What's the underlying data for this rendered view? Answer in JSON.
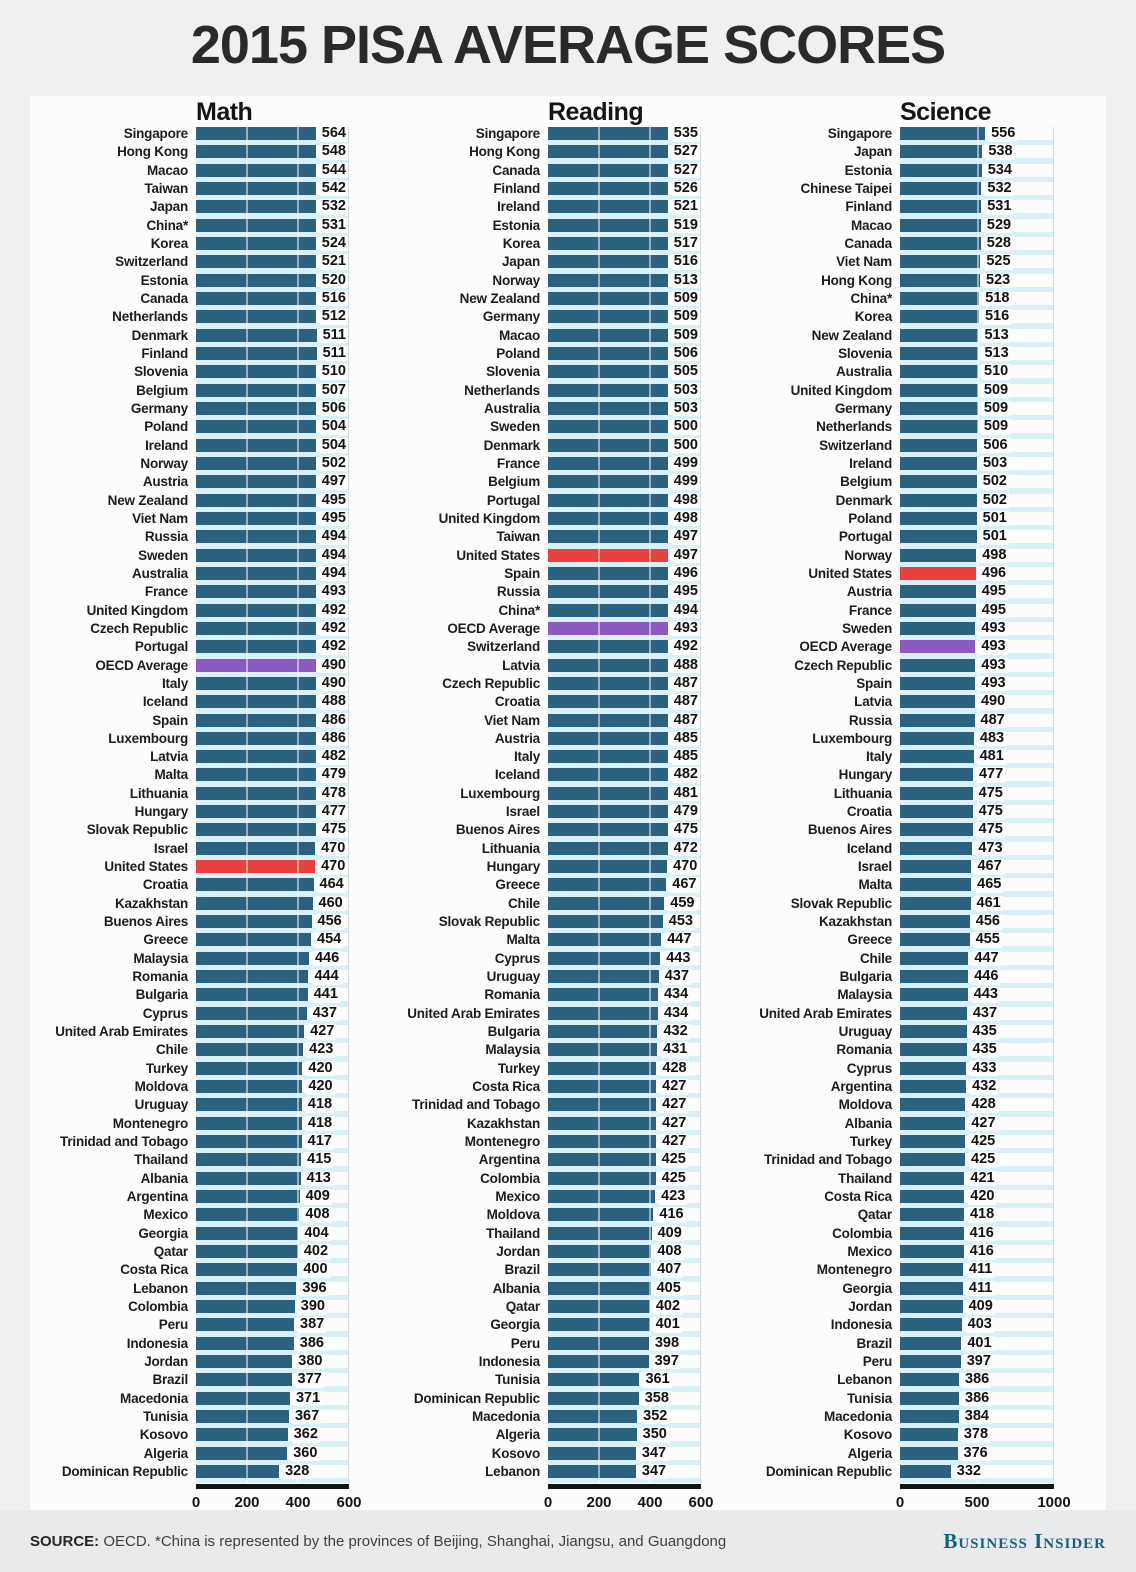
{
  "title": "2015 PISA AVERAGE SCORES",
  "footer": {
    "source_prefix": "SOURCE:",
    "source_text": " OECD. *China is represented by the provinces of Beijing, Shanghai, Jiangsu, and Guangdong",
    "brand": "Business Insider"
  },
  "colors": {
    "bar": "#2a627f",
    "highlight_us": "#e8413e",
    "highlight_oecd": "#8d5bbf",
    "stripe": "#d9f0f8",
    "axis": "#141414",
    "brand": "#15607f"
  },
  "chart_data": [
    {
      "type": "bar",
      "title": "Math",
      "xlabel": "",
      "ylabel": "",
      "xlim": [
        0,
        600
      ],
      "ticks": [
        0,
        200,
        400,
        600
      ],
      "grid": true,
      "highlight_red": "United States",
      "highlight_purple": "OECD Average",
      "rows": [
        [
          "Singapore",
          564
        ],
        [
          "Hong Kong",
          548
        ],
        [
          "Macao",
          544
        ],
        [
          "Taiwan",
          542
        ],
        [
          "Japan",
          532
        ],
        [
          "China*",
          531
        ],
        [
          "Korea",
          524
        ],
        [
          "Switzerland",
          521
        ],
        [
          "Estonia",
          520
        ],
        [
          "Canada",
          516
        ],
        [
          "Netherlands",
          512
        ],
        [
          "Denmark",
          511
        ],
        [
          "Finland",
          511
        ],
        [
          "Slovenia",
          510
        ],
        [
          "Belgium",
          507
        ],
        [
          "Germany",
          506
        ],
        [
          "Poland",
          504
        ],
        [
          "Ireland",
          504
        ],
        [
          "Norway",
          502
        ],
        [
          "Austria",
          497
        ],
        [
          "New Zealand",
          495
        ],
        [
          "Viet Nam",
          495
        ],
        [
          "Russia",
          494
        ],
        [
          "Sweden",
          494
        ],
        [
          "Australia",
          494
        ],
        [
          "France",
          493
        ],
        [
          "United Kingdom",
          492
        ],
        [
          "Czech Republic",
          492
        ],
        [
          "Portugal",
          492
        ],
        [
          "OECD Average",
          490
        ],
        [
          "Italy",
          490
        ],
        [
          "Iceland",
          488
        ],
        [
          "Spain",
          486
        ],
        [
          "Luxembourg",
          486
        ],
        [
          "Latvia",
          482
        ],
        [
          "Malta",
          479
        ],
        [
          "Lithuania",
          478
        ],
        [
          "Hungary",
          477
        ],
        [
          "Slovak Republic",
          475
        ],
        [
          "Israel",
          470
        ],
        [
          "United States",
          470
        ],
        [
          "Croatia",
          464
        ],
        [
          "Kazakhstan",
          460
        ],
        [
          "Buenos Aires",
          456
        ],
        [
          "Greece",
          454
        ],
        [
          "Malaysia",
          446
        ],
        [
          "Romania",
          444
        ],
        [
          "Bulgaria",
          441
        ],
        [
          "Cyprus",
          437
        ],
        [
          "United Arab Emirates",
          427
        ],
        [
          "Chile",
          423
        ],
        [
          "Turkey",
          420
        ],
        [
          "Moldova",
          420
        ],
        [
          "Uruguay",
          418
        ],
        [
          "Montenegro",
          418
        ],
        [
          "Trinidad and Tobago",
          417
        ],
        [
          "Thailand",
          415
        ],
        [
          "Albania",
          413
        ],
        [
          "Argentina",
          409
        ],
        [
          "Mexico",
          408
        ],
        [
          "Georgia",
          404
        ],
        [
          "Qatar",
          402
        ],
        [
          "Costa Rica",
          400
        ],
        [
          "Lebanon",
          396
        ],
        [
          "Colombia",
          390
        ],
        [
          "Peru",
          387
        ],
        [
          "Indonesia",
          386
        ],
        [
          "Jordan",
          380
        ],
        [
          "Brazil",
          377
        ],
        [
          "Macedonia",
          371
        ],
        [
          "Tunisia",
          367
        ],
        [
          "Kosovo",
          362
        ],
        [
          "Algeria",
          360
        ],
        [
          "Dominican Republic",
          328
        ]
      ]
    },
    {
      "type": "bar",
      "title": "Reading",
      "xlabel": "",
      "ylabel": "",
      "xlim": [
        0,
        600
      ],
      "ticks": [
        0,
        200,
        400,
        600
      ],
      "grid": true,
      "highlight_red": "United States",
      "highlight_purple": "OECD Average",
      "rows": [
        [
          "Singapore",
          535
        ],
        [
          "Hong Kong",
          527
        ],
        [
          "Canada",
          527
        ],
        [
          "Finland",
          526
        ],
        [
          "Ireland",
          521
        ],
        [
          "Estonia",
          519
        ],
        [
          "Korea",
          517
        ],
        [
          "Japan",
          516
        ],
        [
          "Norway",
          513
        ],
        [
          "New Zealand",
          509
        ],
        [
          "Germany",
          509
        ],
        [
          "Macao",
          509
        ],
        [
          "Poland",
          506
        ],
        [
          "Slovenia",
          505
        ],
        [
          "Netherlands",
          503
        ],
        [
          "Australia",
          503
        ],
        [
          "Sweden",
          500
        ],
        [
          "Denmark",
          500
        ],
        [
          "France",
          499
        ],
        [
          "Belgium",
          499
        ],
        [
          "Portugal",
          498
        ],
        [
          "United Kingdom",
          498
        ],
        [
          "Taiwan",
          497
        ],
        [
          "United States",
          497
        ],
        [
          "Spain",
          496
        ],
        [
          "Russia",
          495
        ],
        [
          "China*",
          494
        ],
        [
          "OECD Average",
          493
        ],
        [
          "Switzerland",
          492
        ],
        [
          "Latvia",
          488
        ],
        [
          "Czech Republic",
          487
        ],
        [
          "Croatia",
          487
        ],
        [
          "Viet Nam",
          487
        ],
        [
          "Austria",
          485
        ],
        [
          "Italy",
          485
        ],
        [
          "Iceland",
          482
        ],
        [
          "Luxembourg",
          481
        ],
        [
          "Israel",
          479
        ],
        [
          "Buenos Aires",
          475
        ],
        [
          "Lithuania",
          472
        ],
        [
          "Hungary",
          470
        ],
        [
          "Greece",
          467
        ],
        [
          "Chile",
          459
        ],
        [
          "Slovak Republic",
          453
        ],
        [
          "Malta",
          447
        ],
        [
          "Cyprus",
          443
        ],
        [
          "Uruguay",
          437
        ],
        [
          "Romania",
          434
        ],
        [
          "United Arab Emirates",
          434
        ],
        [
          "Bulgaria",
          432
        ],
        [
          "Malaysia",
          431
        ],
        [
          "Turkey",
          428
        ],
        [
          "Costa Rica",
          427
        ],
        [
          "Trinidad and Tobago",
          427
        ],
        [
          "Kazakhstan",
          427
        ],
        [
          "Montenegro",
          427
        ],
        [
          "Argentina",
          425
        ],
        [
          "Colombia",
          425
        ],
        [
          "Mexico",
          423
        ],
        [
          "Moldova",
          416
        ],
        [
          "Thailand",
          409
        ],
        [
          "Jordan",
          408
        ],
        [
          "Brazil",
          407
        ],
        [
          "Albania",
          405
        ],
        [
          "Qatar",
          402
        ],
        [
          "Georgia",
          401
        ],
        [
          "Peru",
          398
        ],
        [
          "Indonesia",
          397
        ],
        [
          "Tunisia",
          361
        ],
        [
          "Dominican Republic",
          358
        ],
        [
          "Macedonia",
          352
        ],
        [
          "Algeria",
          350
        ],
        [
          "Kosovo",
          347
        ],
        [
          "Lebanon",
          347
        ]
      ]
    },
    {
      "type": "bar",
      "title": "Science",
      "xlabel": "",
      "ylabel": "",
      "xlim": [
        0,
        1000
      ],
      "ticks": [
        0,
        500,
        1000
      ],
      "grid": true,
      "highlight_red": "United States",
      "highlight_purple": "OECD Average",
      "rows": [
        [
          "Singapore",
          556
        ],
        [
          "Japan",
          538
        ],
        [
          "Estonia",
          534
        ],
        [
          "Chinese Taipei",
          532
        ],
        [
          "Finland",
          531
        ],
        [
          "Macao",
          529
        ],
        [
          "Canada",
          528
        ],
        [
          "Viet Nam",
          525
        ],
        [
          "Hong Kong",
          523
        ],
        [
          "China*",
          518
        ],
        [
          "Korea",
          516
        ],
        [
          "New Zealand",
          513
        ],
        [
          "Slovenia",
          513
        ],
        [
          "Australia",
          510
        ],
        [
          "United Kingdom",
          509
        ],
        [
          "Germany",
          509
        ],
        [
          "Netherlands",
          509
        ],
        [
          "Switzerland",
          506
        ],
        [
          "Ireland",
          503
        ],
        [
          "Belgium",
          502
        ],
        [
          "Denmark",
          502
        ],
        [
          "Poland",
          501
        ],
        [
          "Portugal",
          501
        ],
        [
          "Norway",
          498
        ],
        [
          "United States",
          496
        ],
        [
          "Austria",
          495
        ],
        [
          "France",
          495
        ],
        [
          "Sweden",
          493
        ],
        [
          "OECD Average",
          493
        ],
        [
          "Czech Republic",
          493
        ],
        [
          "Spain",
          493
        ],
        [
          "Latvia",
          490
        ],
        [
          "Russia",
          487
        ],
        [
          "Luxembourg",
          483
        ],
        [
          "Italy",
          481
        ],
        [
          "Hungary",
          477
        ],
        [
          "Lithuania",
          475
        ],
        [
          "Croatia",
          475
        ],
        [
          "Buenos Aires",
          475
        ],
        [
          "Iceland",
          473
        ],
        [
          "Israel",
          467
        ],
        [
          "Malta",
          465
        ],
        [
          "Slovak Republic",
          461
        ],
        [
          "Kazakhstan",
          456
        ],
        [
          "Greece",
          455
        ],
        [
          "Chile",
          447
        ],
        [
          "Bulgaria",
          446
        ],
        [
          "Malaysia",
          443
        ],
        [
          "United Arab Emirates",
          437
        ],
        [
          "Uruguay",
          435
        ],
        [
          "Romania",
          435
        ],
        [
          "Cyprus",
          433
        ],
        [
          "Argentina",
          432
        ],
        [
          "Moldova",
          428
        ],
        [
          "Albania",
          427
        ],
        [
          "Turkey",
          425
        ],
        [
          "Trinidad and Tobago",
          425
        ],
        [
          "Thailand",
          421
        ],
        [
          "Costa Rica",
          420
        ],
        [
          "Qatar",
          418
        ],
        [
          "Colombia",
          416
        ],
        [
          "Mexico",
          416
        ],
        [
          "Montenegro",
          411
        ],
        [
          "Georgia",
          411
        ],
        [
          "Jordan",
          409
        ],
        [
          "Indonesia",
          403
        ],
        [
          "Brazil",
          401
        ],
        [
          "Peru",
          397
        ],
        [
          "Lebanon",
          386
        ],
        [
          "Tunisia",
          386
        ],
        [
          "Macedonia",
          384
        ],
        [
          "Kosovo",
          378
        ],
        [
          "Algeria",
          376
        ],
        [
          "Dominican Republic",
          332
        ]
      ]
    }
  ]
}
